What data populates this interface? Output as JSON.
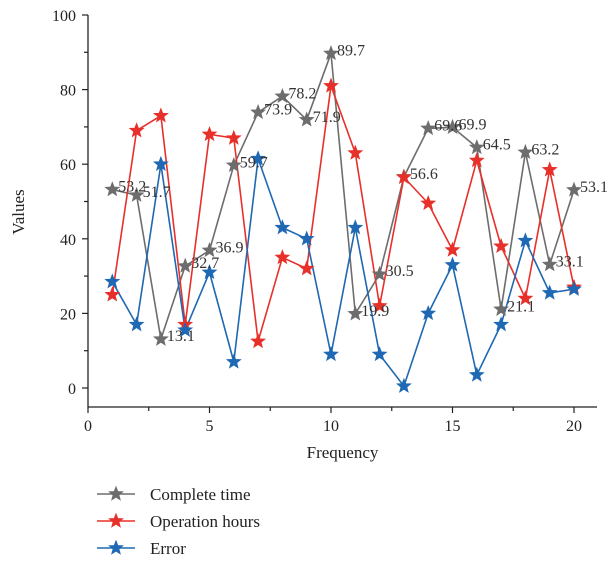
{
  "chart_data": {
    "type": "line",
    "xlabel": "Frequency",
    "ylabel": "Values",
    "xlim": [
      0,
      21
    ],
    "ylim": [
      0,
      100
    ],
    "xticks": [
      0,
      5,
      10,
      15,
      20
    ],
    "yticks": [
      0,
      20,
      40,
      60,
      80,
      100
    ],
    "x": [
      1,
      2,
      3,
      4,
      5,
      6,
      7,
      8,
      9,
      10,
      11,
      12,
      13,
      14,
      15,
      16,
      17,
      18,
      19,
      20
    ],
    "legend_position": "bottom-left, below plot",
    "series": [
      {
        "name": "Complete time",
        "color": "#6d6d6d",
        "marker": "star",
        "values": [
          53.2,
          51.7,
          13.1,
          32.7,
          36.9,
          59.7,
          73.9,
          78.2,
          71.9,
          89.7,
          19.9,
          30.5,
          56.6,
          69.6,
          69.9,
          64.5,
          21.1,
          63.2,
          33.1,
          53.1
        ],
        "data_labels": [
          "53.2",
          "51.7",
          "13.1",
          "32.7",
          "36.9",
          "59.7",
          "73.9",
          "78.2",
          "71.9",
          "89.7",
          "19.9",
          "30.5",
          "56.6",
          "69.6",
          "69.9",
          "64.5",
          "21.1",
          "63.2",
          "33.1",
          "53.1"
        ]
      },
      {
        "name": "Operation hours",
        "color": "#e8302a",
        "marker": "star",
        "values": [
          25,
          69,
          73,
          17,
          68,
          67,
          12.5,
          35,
          32,
          81,
          63,
          22,
          56.5,
          49.5,
          37,
          61,
          38,
          24,
          58.5,
          27
        ]
      },
      {
        "name": "Error",
        "color": "#1f68b3",
        "marker": "star",
        "values": [
          28.5,
          17,
          60,
          15.5,
          31,
          7,
          61.5,
          43,
          40,
          9,
          43,
          9,
          0.5,
          20,
          33,
          3.5,
          17,
          39.5,
          25.5,
          26.5
        ]
      }
    ]
  }
}
